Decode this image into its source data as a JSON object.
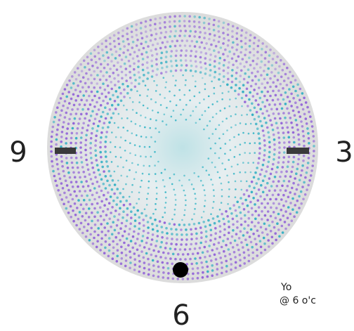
{
  "dial": {
    "labels": {
      "left": "9",
      "right": "3",
      "bottom": "6"
    },
    "note": [
      "Yo",
      "@ 6 o'c"
    ]
  }
}
